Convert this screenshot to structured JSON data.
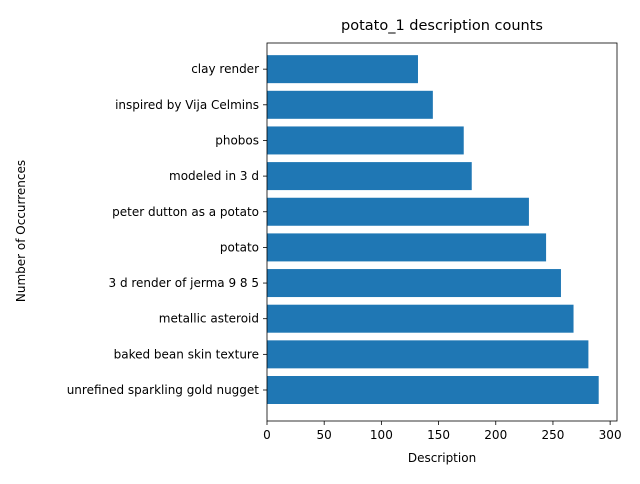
{
  "chart_data": {
    "type": "bar",
    "orientation": "horizontal",
    "title": "potato_1 description counts",
    "xlabel": "Description",
    "ylabel": "Number of Occurrences",
    "categories": [
      "unrefined sparkling gold nugget",
      "baked bean skin texture",
      "metallic asteroid",
      "3 d render of jerma 9 8 5",
      "potato",
      "peter dutton as a potato",
      "modeled in 3 d",
      "phobos",
      "inspired by Vija Celmins",
      "clay render"
    ],
    "values": [
      290,
      281,
      268,
      257,
      244,
      229,
      179,
      172,
      145,
      132
    ],
    "xlim": [
      0,
      306
    ],
    "xticks": [
      0,
      50,
      100,
      150,
      200,
      250,
      300
    ],
    "grid": false,
    "bar_color": "#1f77b4"
  }
}
